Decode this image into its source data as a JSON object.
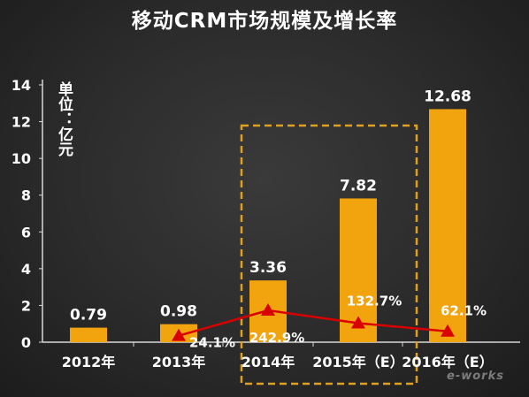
{
  "chart_data": {
    "type": "bar",
    "title": "移动CRM市场规模及增长率",
    "unit_label": "单位：亿元",
    "categories": [
      "2012年",
      "2013年",
      "2014年",
      "2015年（E）",
      "2016年（E）"
    ],
    "values": [
      0.79,
      0.98,
      3.36,
      7.82,
      12.68
    ],
    "value_labels": [
      "0.79",
      "0.98",
      "3.36",
      "7.82",
      "12.68"
    ],
    "ylim": [
      0,
      14
    ],
    "yticks": [
      "0",
      "2",
      "4",
      "6",
      "8",
      "10",
      "12",
      "14"
    ],
    "grid": false,
    "growth_series": {
      "type": "line",
      "categories": [
        "2013年",
        "2014年",
        "2015年（E）",
        "2016年（E）"
      ],
      "values": [
        24.1,
        242.9,
        132.7,
        62.1
      ],
      "labels": [
        "24.1%",
        "242.9%",
        "132.7%",
        "62.1%"
      ],
      "marker": "triangle"
    },
    "highlight_box": {
      "from_category": "2014年",
      "to_category": "2015年（E）",
      "style": "dashed"
    },
    "colors": {
      "bar": "#f2a40f",
      "line": "#d90000",
      "highlight": "#e0a020",
      "text": "#ffffff"
    }
  },
  "watermark": "e-works"
}
